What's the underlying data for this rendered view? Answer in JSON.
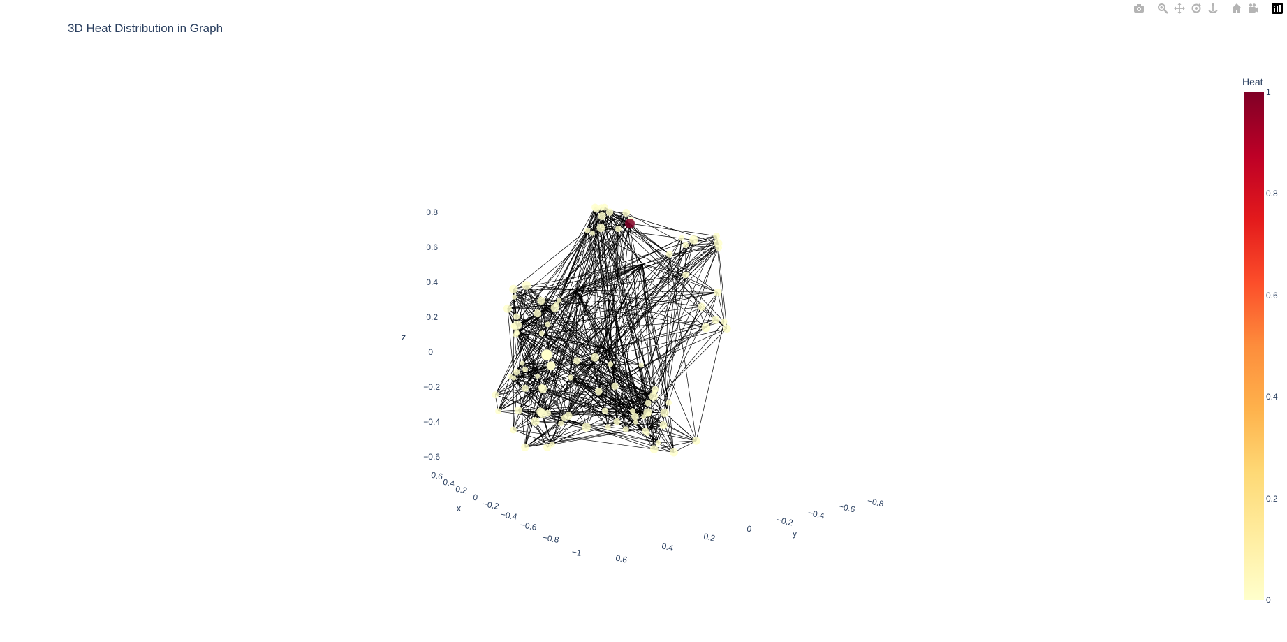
{
  "title": "3D Heat Distribution in Graph",
  "modebar": {
    "icons": [
      "camera-icon",
      "zoom-icon",
      "pan-icon",
      "orbit-icon",
      "turntable-icon",
      "home-icon",
      "reset-camera-icon",
      "plotly-logo-icon"
    ]
  },
  "colors": {
    "edge": "#000000",
    "node_low": "#ffffcc",
    "node_high": "#800026",
    "text": "#2a3f5f"
  },
  "chart_data": {
    "type": "scatter3d",
    "title": "3D Heat Distribution in Graph",
    "axes": {
      "x": {
        "label": "x",
        "ticks": [
          "0.6",
          "0.4",
          "0.2",
          "0",
          "−0.2",
          "−0.4",
          "−0.6",
          "−0.8",
          "−1"
        ]
      },
      "y": {
        "label": "y",
        "ticks": [
          "0.6",
          "0.4",
          "0.2",
          "0",
          "−0.2",
          "−0.4",
          "−0.6",
          "−0.8"
        ]
      },
      "z": {
        "label": "z",
        "ticks": [
          "0.8",
          "0.6",
          "0.4",
          "0.2",
          "0",
          "−0.2",
          "−0.4",
          "−0.6"
        ]
      }
    },
    "colorbar": {
      "title": "Heat",
      "ticks": [
        "1",
        "0.8",
        "0.6",
        "0.4",
        "0.2",
        "0"
      ],
      "range": [
        0,
        1
      ],
      "colorscale": [
        "#ffffcc",
        "#ffeda0",
        "#fed976",
        "#feb24c",
        "#fd8d3c",
        "#fc4e2a",
        "#e31a1c",
        "#bd0026",
        "#800026"
      ]
    },
    "hot_node": {
      "heat": 1
    },
    "node_heat_default": 0,
    "grid": false
  }
}
